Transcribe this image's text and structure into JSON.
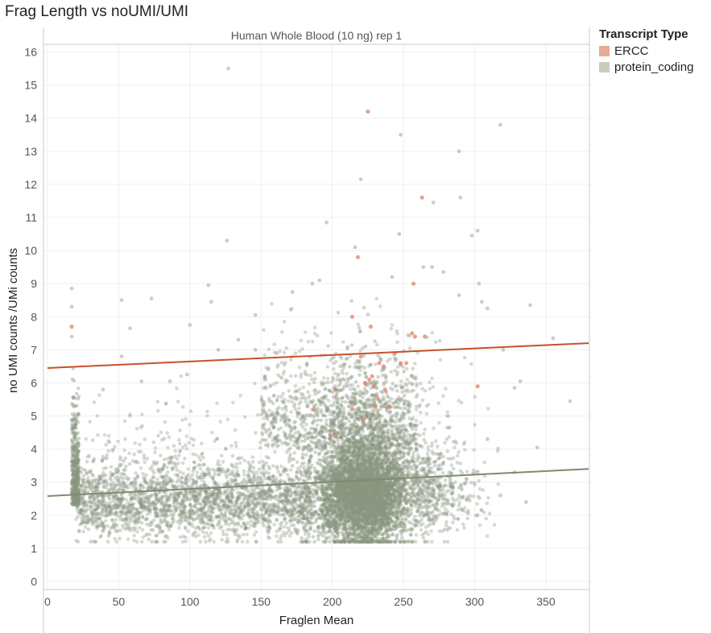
{
  "title": "Frag Length vs noUMI/UMI",
  "chart_data": {
    "type": "scatter",
    "facet_title": "Human Whole Blood (10 ng) rep 1",
    "xlabel": "Fraglen Mean",
    "ylabel": "no UMI counts /UMi counts",
    "xlim": [
      0,
      380
    ],
    "ylim": [
      0,
      16.5
    ],
    "x_ticks": [
      0,
      50,
      100,
      150,
      200,
      250,
      300,
      350
    ],
    "y_ticks": [
      0,
      1,
      2,
      3,
      4,
      5,
      6,
      7,
      8,
      9,
      10,
      11,
      12,
      13,
      14,
      15,
      16
    ],
    "x_tick_labels": [
      "0",
      "50",
      "100",
      "150",
      "200",
      "250",
      "300",
      "350"
    ],
    "y_tick_labels": [
      "0",
      "1",
      "2",
      "3",
      "4",
      "5",
      "6",
      "7",
      "8",
      "9",
      "10",
      "11",
      "12",
      "13",
      "14",
      "15",
      "16"
    ],
    "grid": true,
    "legend": {
      "title": "Transcript Type",
      "position": "top-right",
      "entries": [
        {
          "label": "ERCC",
          "color": "#e8a997"
        },
        {
          "label": "protein_coding",
          "color": "#c8ccbd"
        }
      ]
    },
    "series": [
      {
        "name": "ERCC",
        "color": "#e07a5f",
        "trendline": {
          "x": [
            0,
            380
          ],
          "y": [
            6.45,
            7.2
          ],
          "color": "#c8502a"
        },
        "points": [
          [
            17,
            7.7
          ],
          [
            225,
            14.2
          ],
          [
            263,
            11.6
          ],
          [
            218,
            9.8
          ],
          [
            257,
            9.0
          ],
          [
            227,
            7.7
          ],
          [
            214,
            8.0
          ],
          [
            256,
            7.5
          ],
          [
            258,
            7.4
          ],
          [
            265,
            7.4
          ],
          [
            220,
            6.8
          ],
          [
            233,
            6.6
          ],
          [
            226,
            6.1
          ],
          [
            229,
            5.9
          ],
          [
            231,
            5.6
          ],
          [
            223,
            6.0
          ],
          [
            202,
            5.8
          ],
          [
            230,
            5.3
          ],
          [
            240,
            5.3
          ],
          [
            187,
            5.2
          ],
          [
            214,
            5.2
          ],
          [
            222,
            4.9
          ],
          [
            202,
            4.4
          ],
          [
            302,
            5.9
          ],
          [
            236,
            6.5
          ],
          [
            244,
            6.9
          ],
          [
            248,
            6.6
          ],
          [
            237,
            5.8
          ],
          [
            228,
            6.2
          ],
          [
            252,
            6.6
          ]
        ]
      },
      {
        "name": "protein_coding",
        "color": "#8a9680",
        "trendline": {
          "x": [
            0,
            380
          ],
          "y": [
            2.58,
            3.4
          ],
          "color": "#7d8c70"
        },
        "outliers": [
          [
            127,
            15.5
          ],
          [
            248,
            13.5
          ],
          [
            318,
            13.8
          ],
          [
            289,
            13.0
          ],
          [
            220,
            12.15
          ],
          [
            290,
            11.6
          ],
          [
            271,
            11.45
          ],
          [
            196,
            10.85
          ],
          [
            126,
            10.3
          ],
          [
            247,
            10.5
          ],
          [
            298,
            10.45
          ],
          [
            302,
            10.6
          ],
          [
            17,
            8.85
          ],
          [
            17,
            8.3
          ],
          [
            17,
            7.4
          ],
          [
            52,
            8.5
          ],
          [
            73,
            8.55
          ],
          [
            113,
            8.95
          ],
          [
            115,
            8.45
          ],
          [
            58,
            7.65
          ],
          [
            100,
            7.75
          ],
          [
            146,
            8.05
          ],
          [
            172,
            8.75
          ],
          [
            186,
            9.0
          ],
          [
            191,
            9.1
          ],
          [
            216,
            10.1
          ],
          [
            242,
            9.2
          ],
          [
            264,
            9.5
          ],
          [
            270,
            9.5
          ],
          [
            278,
            9.35
          ],
          [
            303,
            9.0
          ],
          [
            305,
            8.45
          ],
          [
            309,
            8.25
          ],
          [
            289,
            8.65
          ],
          [
            339,
            8.35
          ],
          [
            332,
            6.05
          ],
          [
            355,
            7.35
          ],
          [
            367,
            5.45
          ],
          [
            320,
            7.0
          ],
          [
            328,
            5.85
          ],
          [
            344,
            4.05
          ],
          [
            309,
            4.3
          ],
          [
            302,
            2.0
          ],
          [
            328,
            3.3
          ],
          [
            336,
            2.4
          ],
          [
            318,
            2.6
          ],
          [
            120,
            7.0
          ],
          [
            134,
            7.3
          ],
          [
            146,
            7.0
          ],
          [
            161,
            6.9
          ],
          [
            66,
            6.05
          ],
          [
            86,
            6.05
          ],
          [
            98,
            6.25
          ],
          [
            52,
            6.8
          ],
          [
            39,
            5.8
          ]
        ]
      }
    ]
  }
}
